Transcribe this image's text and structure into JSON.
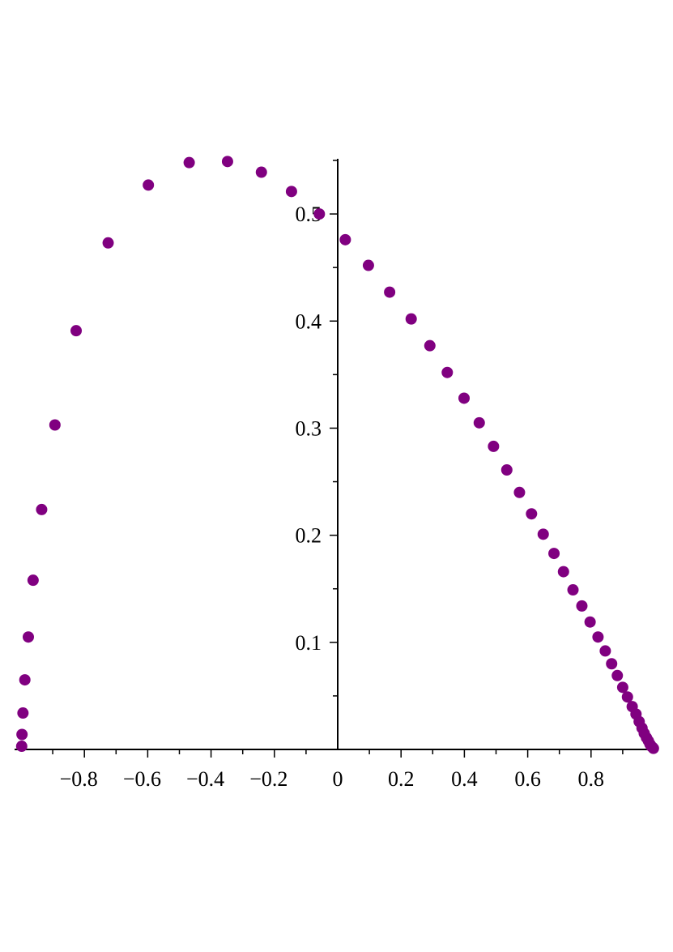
{
  "chart_data": {
    "type": "scatter",
    "title": "",
    "xlabel": "",
    "ylabel": "",
    "xlim": [
      -1.0,
      1.0
    ],
    "ylim": [
      0.0,
      0.55
    ],
    "grid": false,
    "legend": "none",
    "marker_color": "#800080",
    "axis_color": "#000000",
    "x_ticks": [
      {
        "value": -0.8,
        "label": "−0.8"
      },
      {
        "value": -0.6,
        "label": "−0.6"
      },
      {
        "value": -0.4,
        "label": "−0.4"
      },
      {
        "value": -0.2,
        "label": "−0.2"
      },
      {
        "value": 0.0,
        "label": "0"
      },
      {
        "value": 0.2,
        "label": "0.2"
      },
      {
        "value": 0.4,
        "label": "0.4"
      },
      {
        "value": 0.6,
        "label": "0.6"
      },
      {
        "value": 0.8,
        "label": "0.8"
      }
    ],
    "y_ticks": [
      {
        "value": 0.1,
        "label": "0.1"
      },
      {
        "value": 0.2,
        "label": "0.2"
      },
      {
        "value": 0.3,
        "label": "0.3"
      },
      {
        "value": 0.4,
        "label": "0.4"
      },
      {
        "value": 0.5,
        "label": "0.5"
      }
    ],
    "series": [
      {
        "x": [
          -0.998,
          -0.997,
          -0.994,
          -0.988,
          -0.977,
          -0.962,
          -0.935,
          -0.893,
          -0.826,
          -0.725,
          -0.598,
          -0.469,
          -0.348,
          -0.241,
          -0.146,
          -0.058,
          0.024,
          0.097,
          0.164,
          0.232,
          0.291,
          0.346,
          0.399,
          0.447,
          0.492,
          0.534,
          0.574,
          0.612,
          0.649,
          0.683,
          0.713,
          0.743,
          0.771,
          0.797,
          0.822,
          0.845,
          0.865,
          0.883,
          0.9,
          0.915,
          0.93,
          0.942,
          0.952,
          0.961,
          0.968,
          0.975,
          0.981,
          0.986,
          0.99,
          0.994,
          0.997
        ],
        "y": [
          0.003,
          0.014,
          0.034,
          0.065,
          0.105,
          0.158,
          0.224,
          0.303,
          0.391,
          0.473,
          0.527,
          0.548,
          0.549,
          0.539,
          0.521,
          0.5,
          0.476,
          0.452,
          0.427,
          0.402,
          0.377,
          0.352,
          0.328,
          0.305,
          0.283,
          0.261,
          0.24,
          0.22,
          0.201,
          0.183,
          0.166,
          0.149,
          0.134,
          0.119,
          0.105,
          0.092,
          0.08,
          0.069,
          0.058,
          0.049,
          0.04,
          0.033,
          0.026,
          0.02,
          0.015,
          0.011,
          0.008,
          0.005,
          0.003,
          0.002,
          0.001
        ]
      }
    ]
  }
}
